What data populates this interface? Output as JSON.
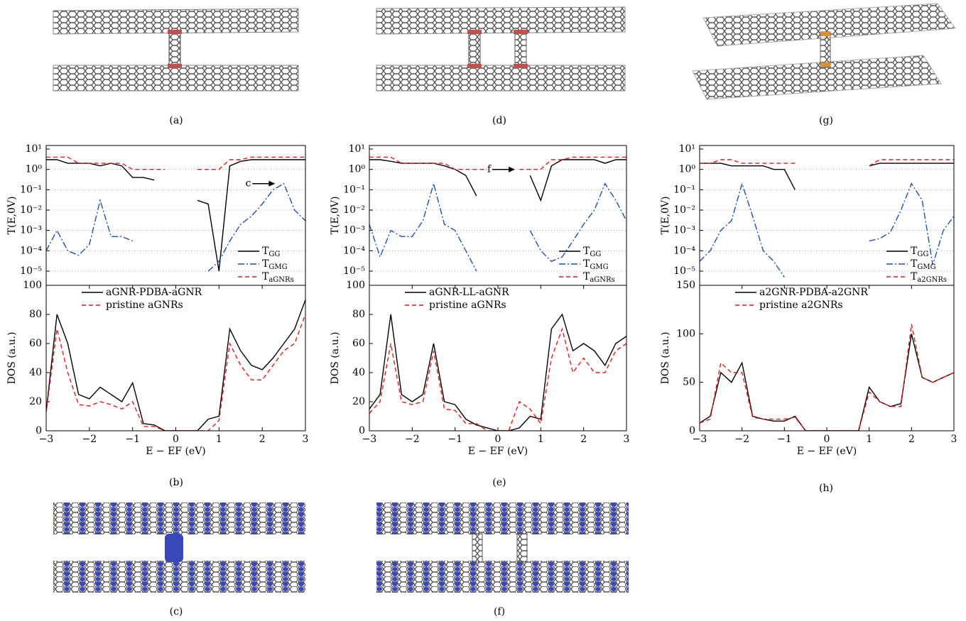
{
  "figure_labels": [
    "(a)",
    "(d)",
    "(g)",
    "(b)",
    "(e)",
    "(h)",
    "(c)",
    "(f)"
  ],
  "chart_data": [
    {
      "type": "line",
      "ylabel": "T(E,0V)",
      "log_y": true,
      "grid": true,
      "legend": "lower right",
      "annotation": "c",
      "x": [
        -3,
        -2.75,
        -2.5,
        -2.25,
        -2,
        -1.75,
        -1.5,
        -1.25,
        -1,
        -0.75,
        -0.5,
        -0.25,
        0,
        0.25,
        0.5,
        0.75,
        1,
        1.25,
        1.5,
        1.75,
        2,
        2.25,
        2.5,
        2.75,
        3
      ],
      "xlim": [
        -3,
        3
      ],
      "ylim": [
        2e-06,
        15
      ],
      "yticks": [
        {
          "value": 10,
          "label": "10¹"
        },
        {
          "value": 1,
          "label": "10⁰"
        },
        {
          "value": 0.1,
          "label": "10⁻¹"
        },
        {
          "value": 0.01,
          "label": "10⁻²"
        },
        {
          "value": 0.001,
          "label": "10⁻³"
        },
        {
          "value": 0.0001,
          "label": "10⁻⁴"
        },
        {
          "value": 1e-05,
          "label": "10⁻⁵"
        }
      ],
      "series": [
        {
          "name": "TGG",
          "color": "#000000",
          "line_style": "solid",
          "values": [
            3,
            3,
            2,
            2,
            2,
            1.5,
            2,
            1.5,
            0.4,
            0.4,
            0.3,
            null,
            null,
            null,
            0.03,
            0.02,
            1e-05,
            1.5,
            2.5,
            3,
            3,
            3,
            3,
            3,
            3
          ]
        },
        {
          "name": "TGMG",
          "color": "#1f4fb4",
          "line_style": "dash-dot",
          "values": [
            0.0001,
            0.001,
            0.0001,
            6e-05,
            0.0002,
            0.03,
            0.0005,
            0.0005,
            0.0003,
            null,
            null,
            null,
            null,
            null,
            null,
            1e-05,
            3e-05,
            0.0003,
            0.002,
            0.005,
            0.02,
            0.1,
            0.2,
            0.01,
            0.003
          ]
        },
        {
          "name": "TaGNRs",
          "color": "#e41a1c",
          "line_style": "dashed",
          "values": [
            4,
            4,
            4,
            2,
            2,
            2,
            2,
            2,
            1,
            1,
            1,
            1,
            null,
            null,
            1,
            1,
            1,
            3,
            3,
            4,
            4,
            4,
            4,
            4,
            4
          ]
        }
      ]
    },
    {
      "type": "line",
      "ylabel": "DOS (a.u.)",
      "xlabel": "E − EF (eV)",
      "legend": "upper left",
      "x": [
        -3,
        -2.75,
        -2.5,
        -2.25,
        -2,
        -1.75,
        -1.5,
        -1.25,
        -1,
        -0.75,
        -0.5,
        -0.25,
        0,
        0.25,
        0.5,
        0.75,
        1,
        1.25,
        1.5,
        1.75,
        2,
        2.25,
        2.5,
        2.75,
        3
      ],
      "xlim": [
        -3,
        3
      ],
      "ylim": [
        0,
        100
      ],
      "xticks": [
        {
          "value": -3,
          "label": "−3"
        },
        {
          "value": -2,
          "label": "−2"
        },
        {
          "value": -1,
          "label": "−1"
        },
        0,
        1,
        2,
        3
      ],
      "yticks": [
        0,
        20,
        40,
        60,
        80,
        100
      ],
      "series": [
        {
          "name": "aGNR-PDBA-aGNR",
          "color": "#000000",
          "line_style": "solid",
          "values": [
            13,
            80,
            60,
            25,
            22,
            30,
            25,
            20,
            33,
            5,
            4,
            0,
            0,
            0,
            0,
            8,
            10,
            70,
            55,
            45,
            42,
            50,
            60,
            70,
            90
          ]
        },
        {
          "name": "pristine aGNRs",
          "color": "#e41a1c",
          "line_style": "dashed",
          "values": [
            13,
            70,
            40,
            18,
            17,
            20,
            18,
            15,
            20,
            3,
            3,
            0,
            0,
            0,
            0,
            0,
            7,
            60,
            45,
            35,
            35,
            45,
            55,
            60,
            80
          ]
        }
      ]
    },
    {
      "type": "line",
      "ylabel": "T(E,0V)",
      "log_y": true,
      "grid": true,
      "legend": "lower right",
      "annotation": "f",
      "x": [
        -3,
        -2.75,
        -2.5,
        -2.25,
        -2,
        -1.75,
        -1.5,
        -1.25,
        -1,
        -0.75,
        -0.5,
        -0.25,
        0,
        0.25,
        0.5,
        0.75,
        1,
        1.25,
        1.5,
        1.75,
        2,
        2.25,
        2.5,
        2.75,
        3
      ],
      "xlim": [
        -3,
        3
      ],
      "ylim": [
        2e-06,
        15
      ],
      "yticks": [
        {
          "value": 10,
          "label": "10¹"
        },
        {
          "value": 1,
          "label": "10⁰"
        },
        {
          "value": 0.1,
          "label": "10⁻¹"
        },
        {
          "value": 0.01,
          "label": "10⁻²"
        },
        {
          "value": 0.001,
          "label": "10⁻³"
        },
        {
          "value": 0.0001,
          "label": "10⁻⁴"
        },
        {
          "value": 1e-05,
          "label": "10⁻⁵"
        }
      ],
      "series": [
        {
          "name": "TGG",
          "color": "#000000",
          "line_style": "solid",
          "values": [
            3,
            3,
            2.5,
            2,
            2,
            2,
            2,
            1.5,
            1,
            0.5,
            0.05,
            null,
            null,
            null,
            null,
            0.5,
            0.03,
            1.5,
            3,
            3,
            3,
            3,
            2,
            3,
            3
          ]
        },
        {
          "name": "TGMG",
          "color": "#1f4fb4",
          "line_style": "dash-dot",
          "values": [
            0.002,
            5e-05,
            0.001,
            0.0005,
            0.0005,
            0.003,
            0.2,
            0.002,
            0.001,
            0.0001,
            1e-05,
            null,
            null,
            null,
            null,
            0.001,
            0.0001,
            3e-05,
            5e-05,
            0.0003,
            0.002,
            0.01,
            0.2,
            0.03,
            0.003
          ]
        },
        {
          "name": "TaGNRs",
          "color": "#e41a1c",
          "line_style": "dashed",
          "values": [
            4,
            4,
            4,
            2,
            2,
            2,
            2,
            2,
            1,
            1,
            1,
            1,
            null,
            null,
            1,
            1,
            1,
            3,
            3,
            4,
            4,
            4,
            4,
            4,
            4
          ]
        }
      ]
    },
    {
      "type": "line",
      "ylabel": "DOS (a.u.)",
      "xlabel": "E − EF (eV)",
      "legend": "upper left",
      "x": [
        -3,
        -2.75,
        -2.5,
        -2.25,
        -2,
        -1.75,
        -1.5,
        -1.25,
        -1,
        -0.75,
        -0.5,
        -0.25,
        0,
        0.25,
        0.5,
        0.75,
        1,
        1.25,
        1.5,
        1.75,
        2,
        2.25,
        2.5,
        2.75,
        3
      ],
      "xlim": [
        -3,
        3
      ],
      "ylim": [
        0,
        100
      ],
      "xticks": [
        {
          "value": -3,
          "label": "−3"
        },
        {
          "value": -2,
          "label": "−2"
        },
        {
          "value": -1,
          "label": "−1"
        },
        0,
        1,
        2,
        3
      ],
      "yticks": [
        0,
        20,
        40,
        60,
        80,
        100
      ],
      "series": [
        {
          "name": "aGNR-LL-aGNR",
          "color": "#000000",
          "line_style": "solid",
          "values": [
            15,
            25,
            80,
            25,
            20,
            25,
            60,
            20,
            18,
            8,
            4,
            2,
            0,
            0,
            2,
            10,
            8,
            70,
            80,
            55,
            60,
            55,
            45,
            60,
            65
          ]
        },
        {
          "name": "pristine aGNRs",
          "color": "#e41a1c",
          "line_style": "dashed",
          "values": [
            12,
            20,
            60,
            20,
            18,
            20,
            55,
            15,
            14,
            5,
            5,
            0,
            0,
            0,
            20,
            15,
            5,
            50,
            70,
            40,
            50,
            40,
            40,
            55,
            60
          ]
        }
      ]
    },
    {
      "type": "line",
      "ylabel": "T(E,0V)",
      "log_y": true,
      "grid": true,
      "legend": "lower right",
      "x": [
        -3,
        -2.75,
        -2.5,
        -2.25,
        -2,
        -1.75,
        -1.5,
        -1.25,
        -1,
        -0.75,
        -0.5,
        -0.25,
        0,
        0.25,
        0.5,
        0.75,
        1,
        1.25,
        1.5,
        1.75,
        2,
        2.25,
        2.5,
        2.75,
        3
      ],
      "xlim": [
        -3,
        3
      ],
      "ylim": [
        2e-06,
        15
      ],
      "yticks": [
        {
          "value": 10,
          "label": "10¹"
        },
        {
          "value": 1,
          "label": "10⁰"
        },
        {
          "value": 0.1,
          "label": "10⁻¹"
        },
        {
          "value": 0.01,
          "label": "10⁻²"
        },
        {
          "value": 0.001,
          "label": "10⁻³"
        },
        {
          "value": 0.0001,
          "label": "10⁻⁴"
        },
        {
          "value": 1e-05,
          "label": "10⁻⁵"
        }
      ],
      "series": [
        {
          "name": "TGG",
          "color": "#000000",
          "line_style": "solid",
          "values": [
            2,
            2,
            2,
            1.5,
            1.5,
            1.5,
            1.5,
            1,
            1,
            0.1,
            null,
            null,
            null,
            null,
            null,
            null,
            1.5,
            2,
            2,
            2,
            2,
            2,
            2,
            2,
            2
          ]
        },
        {
          "name": "TGMG",
          "color": "#1f4fb4",
          "line_style": "dash-dot",
          "values": [
            3e-05,
            0.0001,
            0.001,
            0.003,
            0.2,
            0.005,
            0.0001,
            3e-05,
            5e-06,
            null,
            null,
            null,
            null,
            null,
            null,
            null,
            0.0003,
            0.0004,
            0.0008,
            0.01,
            0.2,
            0.03,
            2e-05,
            0.001,
            0.005
          ]
        },
        {
          "name": "Ta2GNRs",
          "color": "#e41a1c",
          "line_style": "dashed",
          "values": [
            2,
            2,
            3,
            3,
            2,
            2,
            2,
            2,
            2,
            2,
            null,
            null,
            null,
            null,
            null,
            null,
            1.5,
            3,
            3,
            3,
            3,
            3,
            3,
            3,
            3
          ]
        }
      ]
    },
    {
      "type": "line",
      "ylabel": "DOS (a.u.)",
      "xlabel": "E − EF (eV)",
      "legend": "upper left",
      "x": [
        -3,
        -2.75,
        -2.5,
        -2.25,
        -2,
        -1.75,
        -1.5,
        -1.25,
        -1,
        -0.75,
        -0.5,
        -0.25,
        0,
        0.25,
        0.5,
        0.75,
        1,
        1.25,
        1.5,
        1.75,
        2,
        2.25,
        2.5,
        2.75,
        3
      ],
      "xlim": [
        -3,
        3
      ],
      "ylim": [
        0,
        150
      ],
      "xticks": [
        {
          "value": -3,
          "label": "−3"
        },
        {
          "value": -2,
          "label": "−2"
        },
        {
          "value": -1,
          "label": "−1"
        },
        0,
        1,
        2,
        3
      ],
      "yticks": [
        0,
        50,
        100,
        150
      ],
      "series": [
        {
          "name": "a2GNR-PDBA-a2GNR",
          "color": "#000000",
          "line_style": "solid",
          "values": [
            8,
            15,
            60,
            50,
            70,
            15,
            12,
            10,
            10,
            15,
            0,
            0,
            0,
            0,
            0,
            0,
            45,
            30,
            25,
            28,
            100,
            55,
            50,
            55,
            60
          ]
        },
        {
          "name": "pristine a2GNRs",
          "color": "#e41a1c",
          "line_style": "dashed",
          "values": [
            8,
            12,
            70,
            60,
            60,
            14,
            12,
            12,
            12,
            14,
            0,
            0,
            0,
            0,
            0,
            0,
            40,
            30,
            25,
            25,
            110,
            55,
            50,
            55,
            60
          ]
        }
      ]
    }
  ]
}
